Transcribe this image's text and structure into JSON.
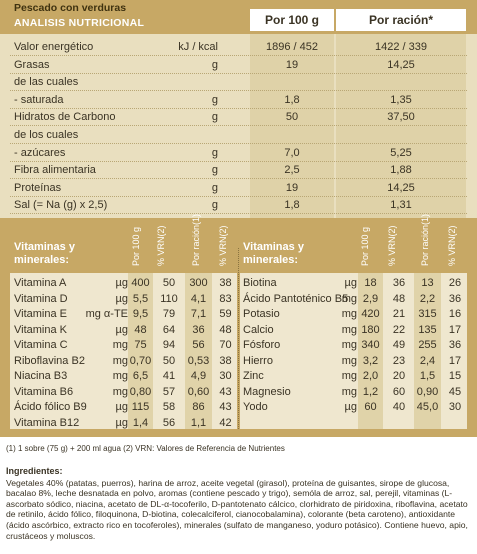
{
  "header": {
    "title": "Pescado con verduras",
    "subtitle": "ANALISIS NUTRICIONAL",
    "col_per100": "Por 100 g",
    "col_ration": "Por ración*"
  },
  "nutrition": [
    {
      "label": "Valor energético",
      "unit": "kJ / kcal",
      "per100": "1896 / 452",
      "ration": "1422 / 339"
    },
    {
      "label": "Grasas",
      "unit": "g",
      "per100": "19",
      "ration": "14,25"
    },
    {
      "label": "de las cuales",
      "unit": "",
      "per100": "",
      "ration": ""
    },
    {
      "label": " - saturada",
      "unit": "g",
      "per100": "1,8",
      "ration": "1,35"
    },
    {
      "label": "Hidratos de Carbono",
      "unit": "g",
      "per100": "50",
      "ration": "37,50"
    },
    {
      "label": "de los cuales",
      "unit": "",
      "per100": "",
      "ration": ""
    },
    {
      "label": " - azúcares",
      "unit": "g",
      "per100": "7,0",
      "ration": "5,25"
    },
    {
      "label": "Fibra alimentaria",
      "unit": "g",
      "per100": "2,5",
      "ration": "1,88"
    },
    {
      "label": "Proteínas",
      "unit": "g",
      "per100": "19",
      "ration": "14,25"
    },
    {
      "label": "Sal (= Na (g) x 2,5)",
      "unit": "g",
      "per100": "1,8",
      "ration": "1,31"
    }
  ],
  "vitamins_header": {
    "label_line1": "Vitaminas y",
    "label_line2": "minerales:",
    "col_per100": "Por 100 g",
    "col_vrn1": "% VRN(2)",
    "col_ration": "Por ración(1)",
    "col_vrn2": "% VRN(2)"
  },
  "vitamins_left": [
    {
      "name": "Vitamina A",
      "unit": "µg",
      "per100": "400",
      "vrn1": "50",
      "ration": "300",
      "vrn2": "38"
    },
    {
      "name": "Vitamina D",
      "unit": "µg",
      "per100": "5,5",
      "vrn1": "110",
      "ration": "4,1",
      "vrn2": "83"
    },
    {
      "name": "Vitamina E",
      "unit": "mg α-TE",
      "per100": "9,5",
      "vrn1": "79",
      "ration": "7,1",
      "vrn2": "59"
    },
    {
      "name": "Vitamina K",
      "unit": "µg",
      "per100": "48",
      "vrn1": "64",
      "ration": "36",
      "vrn2": "48"
    },
    {
      "name": "Vitamina C",
      "unit": "mg",
      "per100": "75",
      "vrn1": "94",
      "ration": "56",
      "vrn2": "70"
    },
    {
      "name": "Riboflavina B2",
      "unit": "mg",
      "per100": "0,70",
      "vrn1": "50",
      "ration": "0,53",
      "vrn2": "38"
    },
    {
      "name": "Niacina B3",
      "unit": "mg",
      "per100": "6,5",
      "vrn1": "41",
      "ration": "4,9",
      "vrn2": "30"
    },
    {
      "name": "Vitamina B6",
      "unit": "mg",
      "per100": "0,80",
      "vrn1": "57",
      "ration": "0,60",
      "vrn2": "43"
    },
    {
      "name": "Ácido fólico B9",
      "unit": "µg",
      "per100": "115",
      "vrn1": "58",
      "ration": "86",
      "vrn2": "43"
    },
    {
      "name": "Vitamina B12",
      "unit": "µg",
      "per100": "1,4",
      "vrn1": "56",
      "ration": "1,1",
      "vrn2": "42"
    }
  ],
  "vitamins_right": [
    {
      "name": "Biotina",
      "unit": "µg",
      "per100": "18",
      "vrn1": "36",
      "ration": "13",
      "vrn2": "26"
    },
    {
      "name": "Ácido Pantoténico B5",
      "unit": "mg",
      "per100": "2,9",
      "vrn1": "48",
      "ration": "2,2",
      "vrn2": "36"
    },
    {
      "name": "Potasio",
      "unit": "mg",
      "per100": "420",
      "vrn1": "21",
      "ration": "315",
      "vrn2": "16"
    },
    {
      "name": "Calcio",
      "unit": "mg",
      "per100": "180",
      "vrn1": "22",
      "ration": "135",
      "vrn2": "17"
    },
    {
      "name": "Fósforo",
      "unit": "mg",
      "per100": "340",
      "vrn1": "49",
      "ration": "255",
      "vrn2": "36"
    },
    {
      "name": "Hierro",
      "unit": "mg",
      "per100": "3,2",
      "vrn1": "23",
      "ration": "2,4",
      "vrn2": "17"
    },
    {
      "name": "Zinc",
      "unit": "mg",
      "per100": "2,0",
      "vrn1": "20",
      "ration": "1,5",
      "vrn2": "15"
    },
    {
      "name": "Magnesio",
      "unit": "mg",
      "per100": "1,2",
      "vrn1": "60",
      "ration": "0,90",
      "vrn2": "45"
    },
    {
      "name": "Yodo",
      "unit": "µg",
      "per100": "60",
      "vrn1": "40",
      "ration": "45,0",
      "vrn2": "30"
    }
  ],
  "footnote": "(1) 1 sobre (75 g) + 200 ml agua   (2) VRN: Valores de Referencia de Nutrientes",
  "ingredients": {
    "title": "Ingredientes:",
    "text": "Vegetales 40% (patatas, puerros), harina de arroz, aceite vegetal (girasol), proteína de guisantes, sirope de glucosa, bacalao 8%, leche desnatada en polvo, aromas (contiene pescado y trigo), semóla de arroz, sal, perejil, vitaminas (L-ascorbato sódico, niacina, acetato de DL-α-tocoferilo, D-pantotenato cálcico, clorhidrato de piridoxina, riboflavina, acetato de retinilo, ácido fólico, filoquinona, D-biotina, colecalciferol, cianocobalamina), colorante (beta caroteno), antioxidante (ácido ascórbico, extracto rico en tocoferoles), minerales (sulfato de manganeso, yoduro potásico). Contiene huevo, apio, crustáceos y moluscos."
  }
}
